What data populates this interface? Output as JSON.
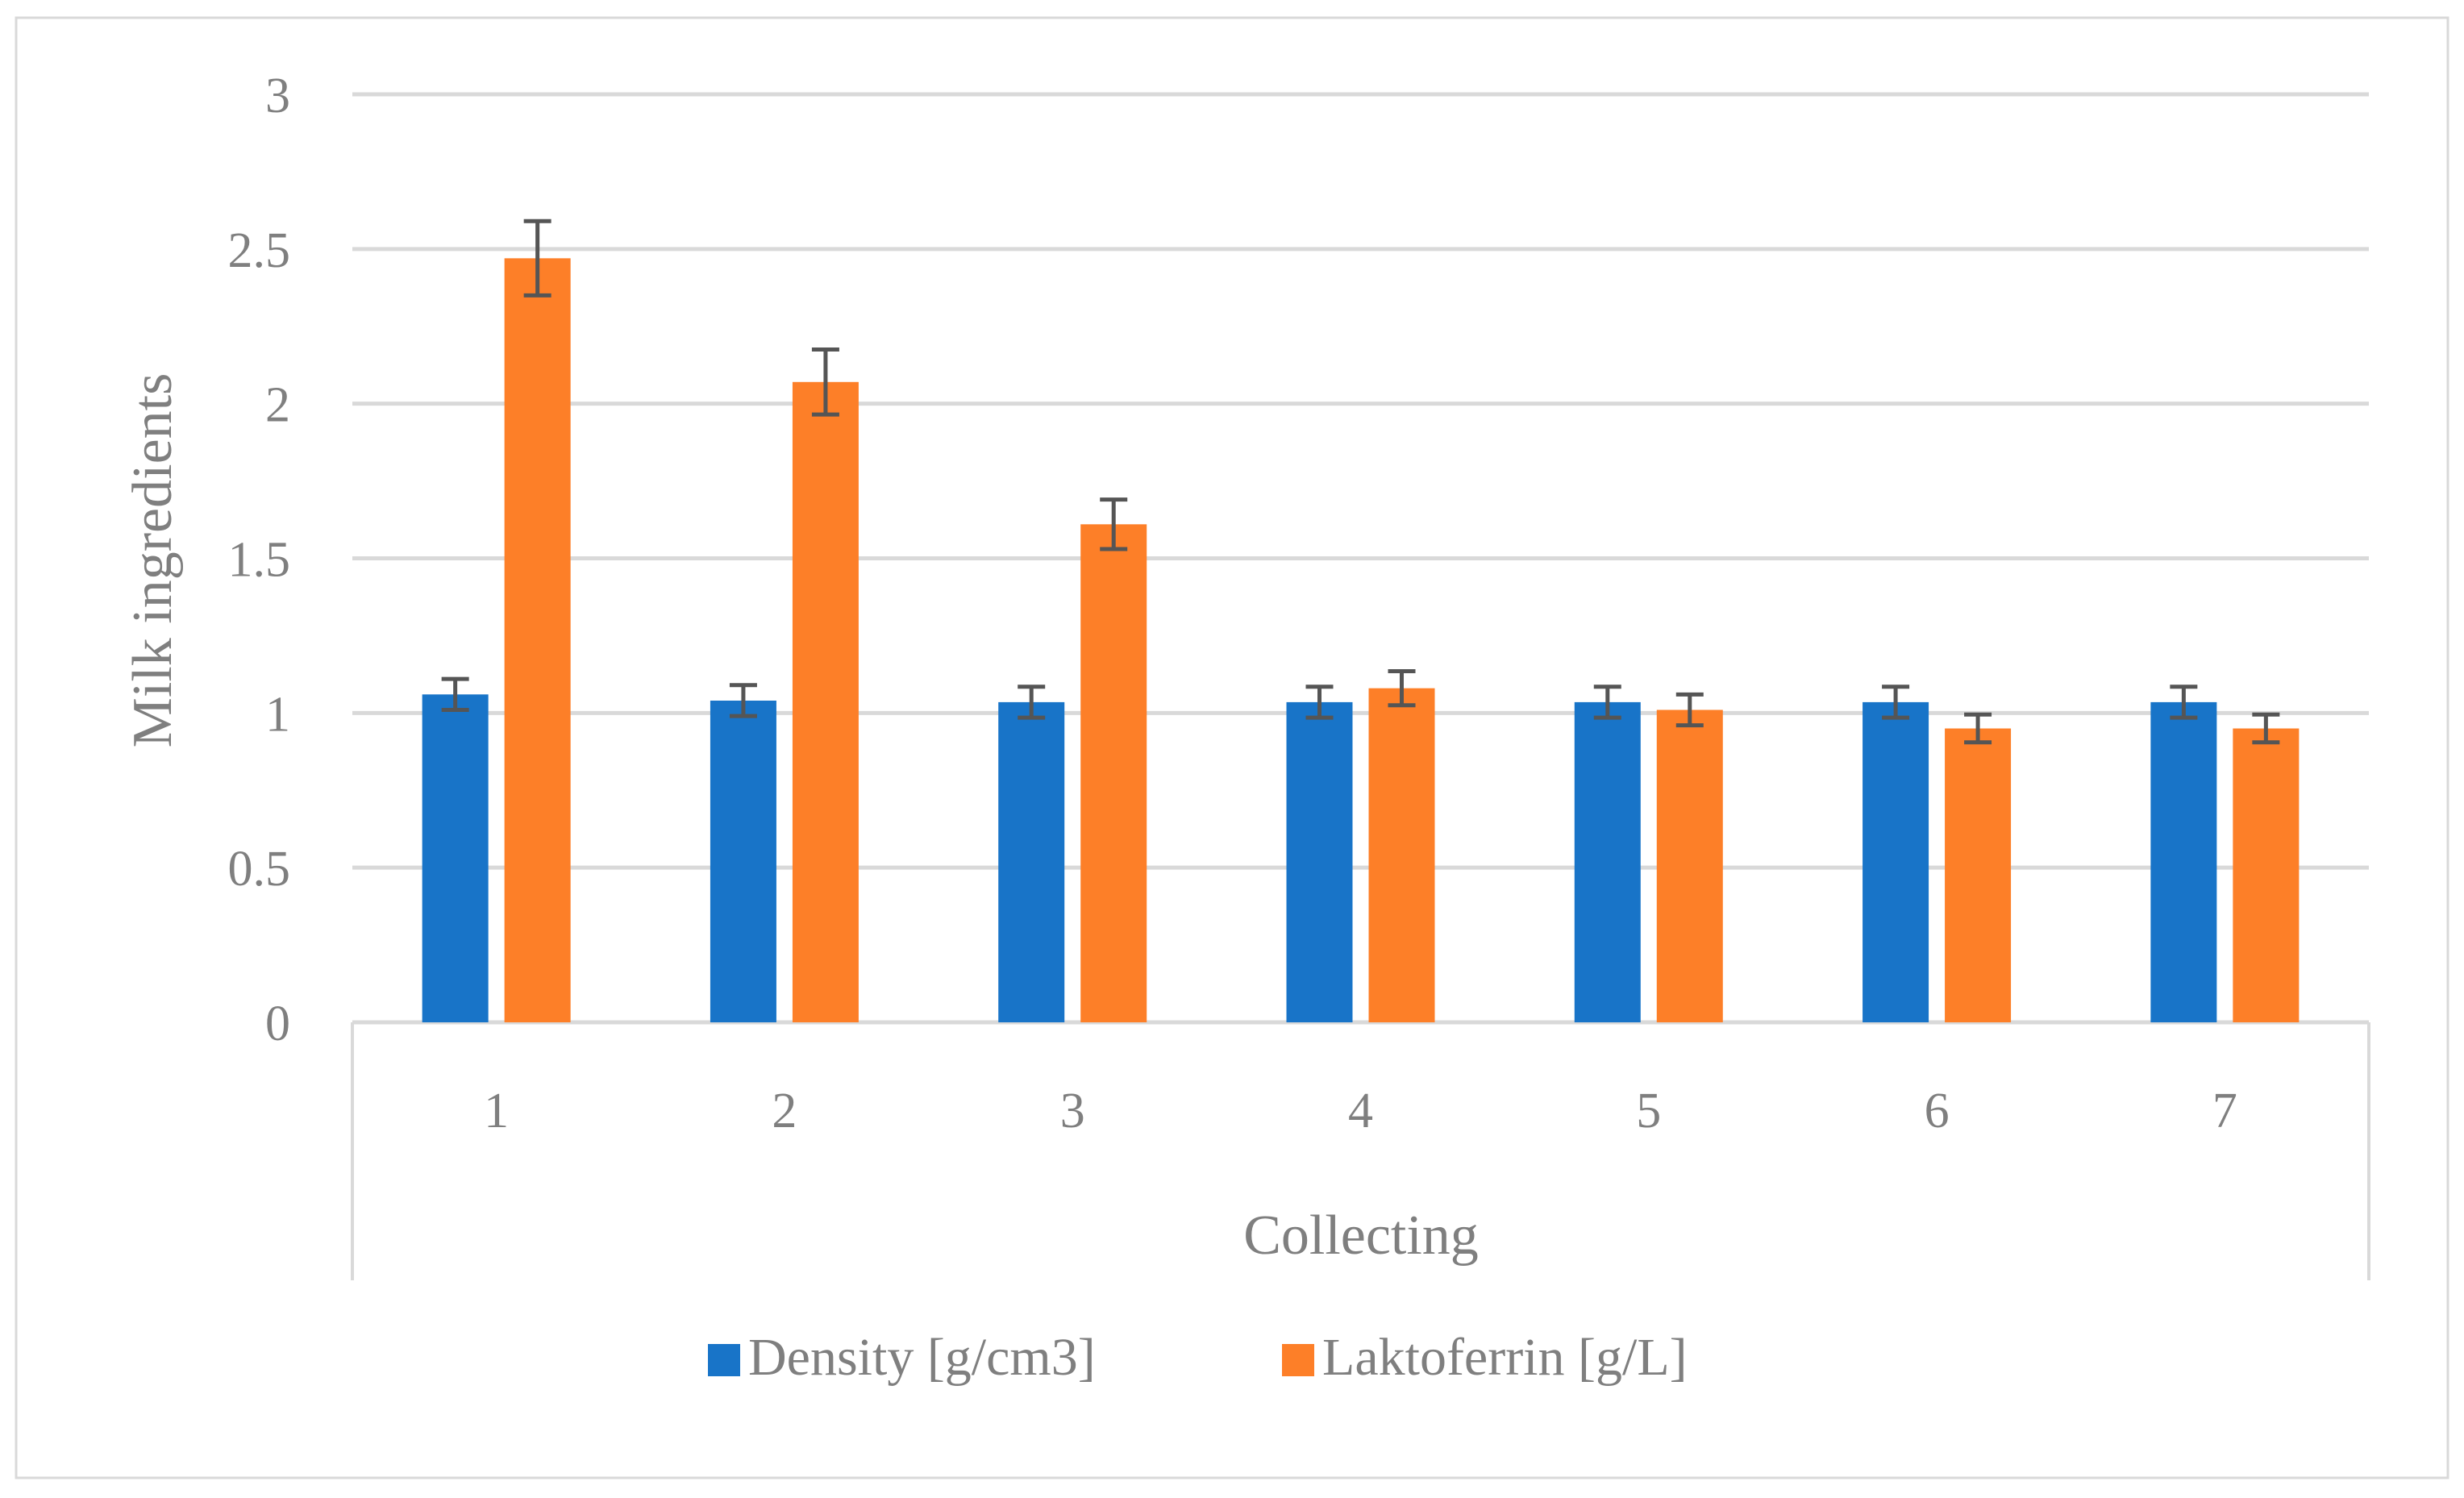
{
  "chart_data": {
    "type": "bar",
    "title": "",
    "xlabel": "Collecting",
    "ylabel": "Milk ingredients",
    "ylim": [
      0,
      3
    ],
    "yticks": [
      "0",
      "0.5",
      "1",
      "1.5",
      "2",
      "2.5",
      "3"
    ],
    "grid": true,
    "legend_position": "bottom",
    "categories": [
      "1",
      "2",
      "3",
      "4",
      "5",
      "6",
      "7"
    ],
    "series": [
      {
        "name": "Density [g/cm3]",
        "color": "#1874c8",
        "values": [
          1.06,
          1.04,
          1.035,
          1.035,
          1.035,
          1.035,
          1.035
        ],
        "errors": [
          0.05,
          0.05,
          0.05,
          0.05,
          0.05,
          0.05,
          0.05
        ]
      },
      {
        "name": "Laktoferrin [g/L]",
        "color": "#fd7f28",
        "values": [
          2.47,
          2.07,
          1.61,
          1.08,
          1.01,
          0.95,
          0.95
        ],
        "errors": [
          0.12,
          0.105,
          0.08,
          0.055,
          0.05,
          0.045,
          0.045
        ]
      }
    ],
    "error_bar_color": "#555555",
    "grid_color": "#d9d9d9"
  }
}
